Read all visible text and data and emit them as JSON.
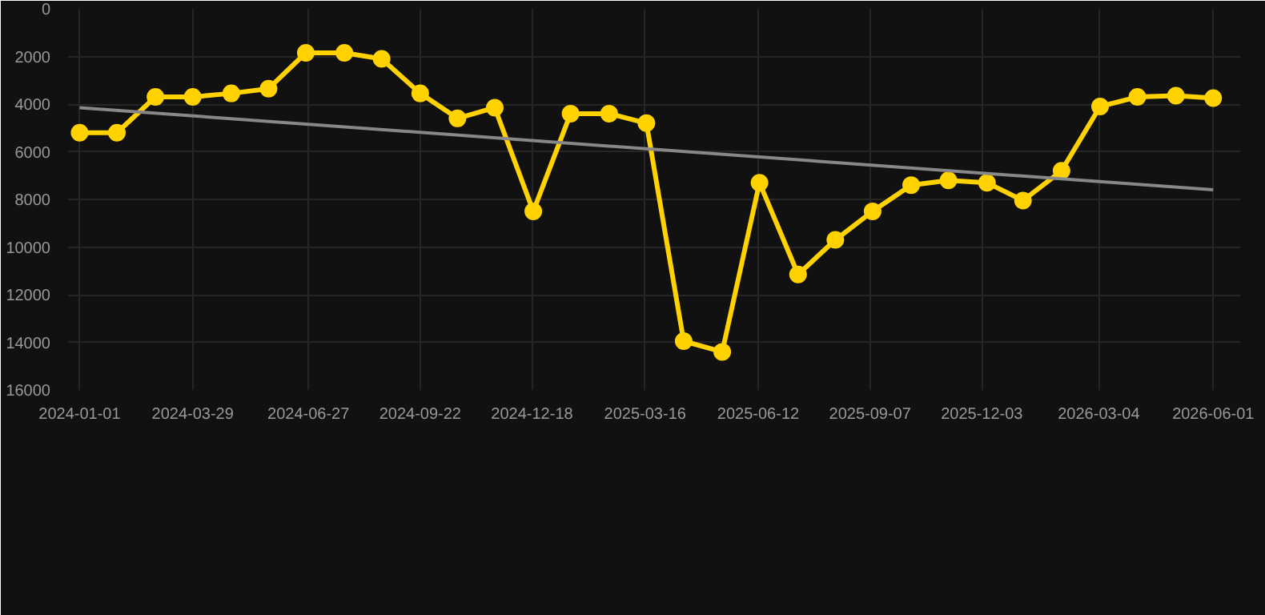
{
  "chart_data": {
    "type": "line",
    "grid": true,
    "marker": "circle",
    "x": [
      "2024-01-01",
      "2024-01-30",
      "2024-02-29",
      "2024-03-29",
      "2024-04-28",
      "2024-05-27",
      "2024-06-25",
      "2024-07-25",
      "2024-08-23",
      "2024-09-22",
      "2024-10-21",
      "2024-11-19",
      "2024-12-19",
      "2025-01-17",
      "2025-02-16",
      "2025-03-17",
      "2025-04-15",
      "2025-05-15",
      "2025-06-13",
      "2025-07-13",
      "2025-08-11",
      "2025-09-09",
      "2025-10-09",
      "2025-11-07",
      "2025-12-07",
      "2026-01-04",
      "2026-02-03",
      "2026-03-05",
      "2026-04-03",
      "2026-05-03",
      "2026-06-01"
    ],
    "series": [
      {
        "color": "#ffd200",
        "values": [
          5200,
          5200,
          3700,
          3700,
          3550,
          3350,
          1850,
          1850,
          2100,
          3550,
          4600,
          4150,
          8500,
          4400,
          4400,
          4800,
          13950,
          14400,
          7300,
          11150,
          9700,
          8500,
          7400,
          7200,
          7300,
          8050,
          6800,
          4100,
          3700,
          3650,
          3750
        ]
      },
      {
        "marker": "none",
        "color": "#888888",
        "x": [
          "2024-01-01",
          "2026-06-01"
        ],
        "values": [
          4150,
          7600
        ]
      }
    ],
    "xlim": [
      "2023-12-23",
      "2026-06-22"
    ],
    "xticks": [
      "2024-01-01",
      "2024-03-29",
      "2024-06-27",
      "2024-09-22",
      "2024-12-18",
      "2025-03-16",
      "2025-06-12",
      "2025-09-07",
      "2025-12-03",
      "2026-03-04",
      "2026-06-01"
    ],
    "ylim": [
      16000,
      0
    ],
    "yticks": [
      0,
      2000,
      4000,
      6000,
      8000,
      10000,
      12000,
      14000,
      16000
    ]
  }
}
